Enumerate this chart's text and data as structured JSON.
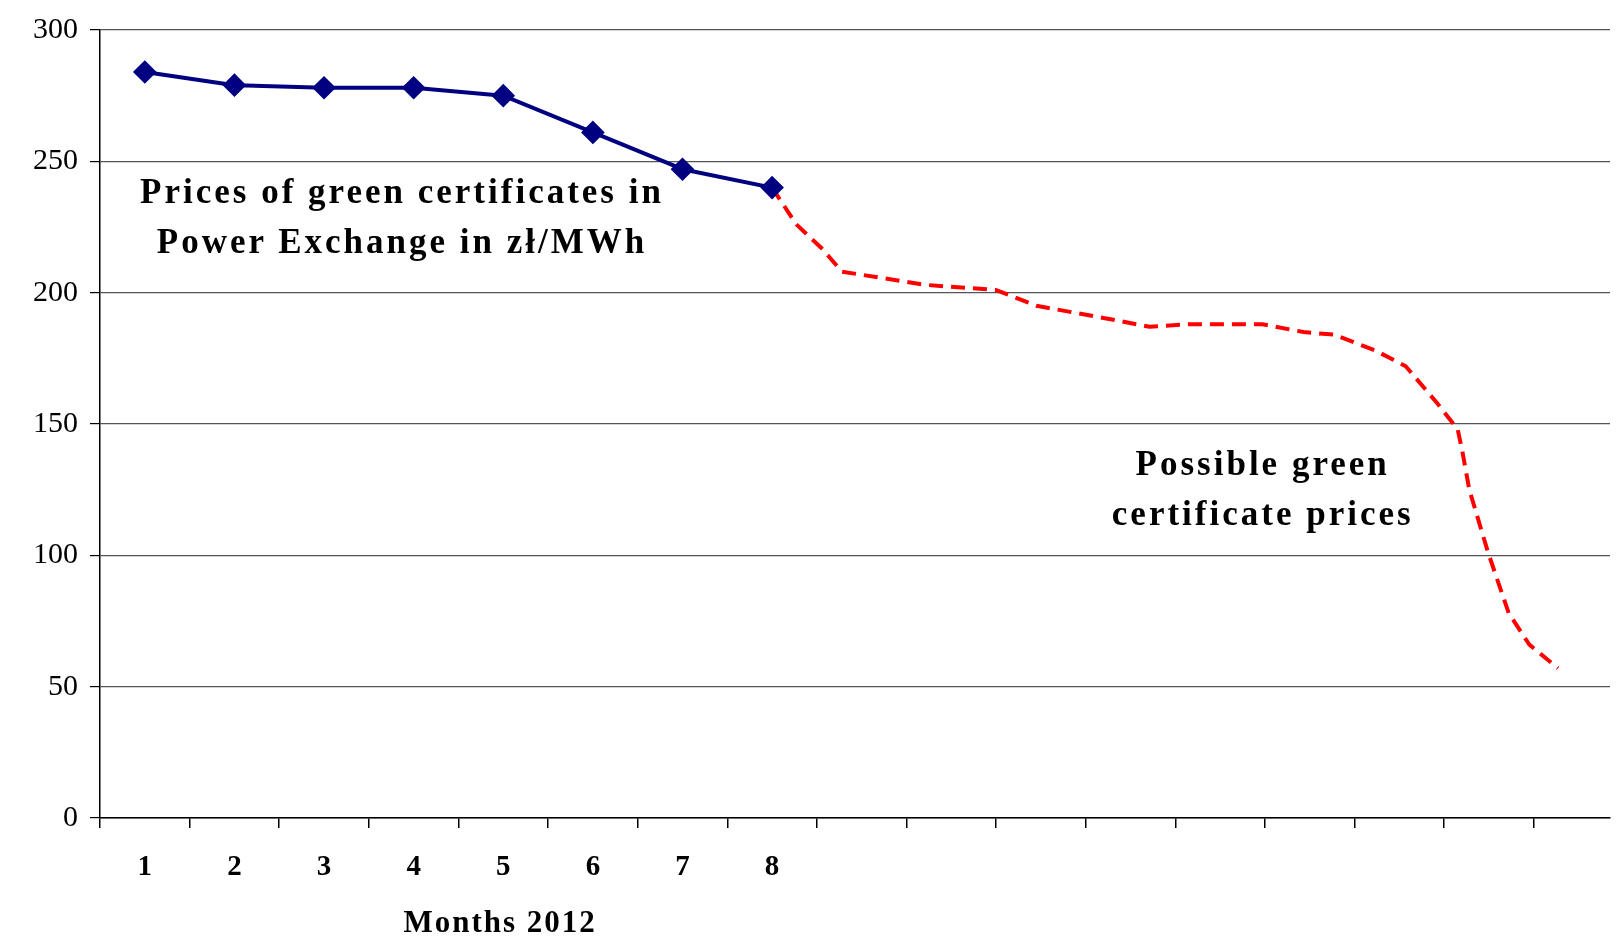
{
  "chart_data": {
    "type": "line",
    "xlabel": "Months 2012",
    "xlim": [
      0.5,
      17.35
    ],
    "xticks": [
      {
        "value": 0.5,
        "label": null
      },
      {
        "value": 1,
        "label": "1"
      },
      {
        "value": 1.5,
        "label": null
      },
      {
        "value": 2,
        "label": "2"
      },
      {
        "value": 2.5,
        "label": null
      },
      {
        "value": 3,
        "label": "3"
      },
      {
        "value": 3.5,
        "label": null
      },
      {
        "value": 4,
        "label": "4"
      },
      {
        "value": 4.5,
        "label": null
      },
      {
        "value": 5,
        "label": "5"
      },
      {
        "value": 5.5,
        "label": null
      },
      {
        "value": 6,
        "label": "6"
      },
      {
        "value": 6.5,
        "label": null
      },
      {
        "value": 7,
        "label": "7"
      },
      {
        "value": 7.5,
        "label": null
      },
      {
        "value": 8,
        "label": "8"
      },
      {
        "value": 8.5,
        "label": null
      },
      {
        "value": 9.5,
        "label": null
      },
      {
        "value": 10.5,
        "label": null
      },
      {
        "value": 11.5,
        "label": null
      },
      {
        "value": 12.5,
        "label": null
      },
      {
        "value": 13.5,
        "label": null
      },
      {
        "value": 14.5,
        "label": null
      },
      {
        "value": 15.5,
        "label": null
      },
      {
        "value": 16.5,
        "label": null
      }
    ],
    "ylim": [
      0,
      300
    ],
    "yticks": [
      0,
      50,
      100,
      150,
      200,
      250,
      300
    ],
    "grid": "y",
    "series": [
      {
        "name": "Prices of green certificates in Power Exchange in zł/MWh",
        "color": "#000080",
        "marker": "diamond",
        "line_style": "solid",
        "x": [
          1,
          2,
          3,
          4,
          5,
          6,
          7,
          8
        ],
        "values": [
          284,
          279,
          278,
          278,
          275,
          261,
          247,
          240
        ]
      },
      {
        "name": "Possible green certificate prices",
        "color": "#ff0000",
        "marker": "none",
        "line_style": "dashed",
        "x": [
          8.0,
          8.27,
          8.55,
          8.78,
          9.7,
          10.5,
          10.95,
          11.76,
          12.21,
          12.67,
          13.47,
          13.93,
          14.27,
          14.73,
          15.07,
          15.42,
          15.65,
          15.7,
          15.78,
          15.99,
          16.22,
          16.45,
          16.77
        ],
        "values": [
          240,
          226,
          217,
          208,
          203,
          201,
          195,
          190,
          187,
          188,
          188,
          185,
          184,
          178,
          172,
          158,
          148,
          140,
          125,
          101,
          78,
          66,
          57
        ]
      }
    ]
  }
}
